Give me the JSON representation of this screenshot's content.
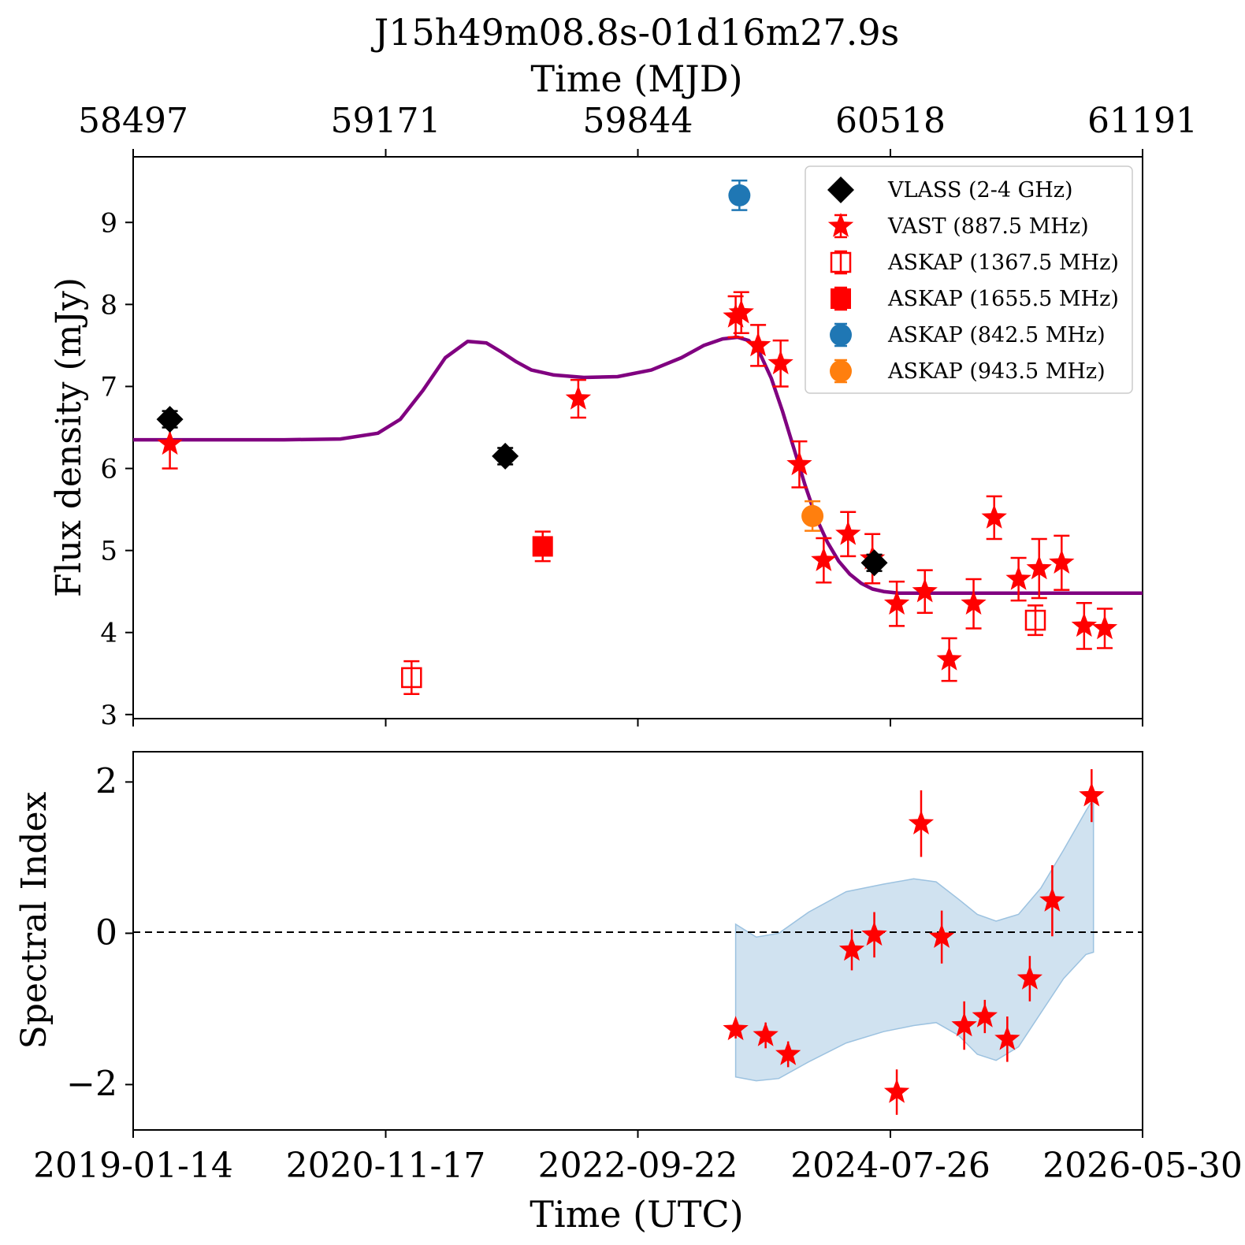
{
  "title": "J15h49m08.8s-01d16m27.9s",
  "colors": {
    "vlass": "#000000",
    "vast": "#ff0000",
    "askap_1367": "#ff0000",
    "askap_1655": "#ff0000",
    "askap_842": "#1f77b4",
    "askap_943": "#ff7f0e",
    "model": "#800080",
    "band": "#bcd6ea"
  },
  "chart_data": [
    {
      "type": "scatter",
      "panel": "flux",
      "top_axis_label": "Time (MJD)",
      "top_ticks": [
        58497,
        59171,
        59844,
        60518,
        61191
      ],
      "ylabel": "Flux density (mJy)",
      "xlim": [
        58497,
        61191
      ],
      "ylim": [
        2.95,
        9.8
      ],
      "yticks": [
        3,
        4,
        5,
        6,
        7,
        8,
        9
      ],
      "legend_position": "top-right",
      "series": [
        {
          "name": "VLASS (2-4 GHz)",
          "marker": "diamond",
          "points": [
            {
              "x": 58595,
              "y": 6.6,
              "err": 0.1
            },
            {
              "x": 59490,
              "y": 6.15,
              "err": 0.1
            },
            {
              "x": 60475,
              "y": 4.85,
              "err": 0.1
            }
          ]
        },
        {
          "name": "VAST (887.5 MHz)",
          "marker": "star",
          "points": [
            {
              "x": 58595,
              "y": 6.3,
              "err": 0.3
            },
            {
              "x": 59685,
              "y": 6.85,
              "err": 0.23
            },
            {
              "x": 60105,
              "y": 7.85,
              "err": 0.25
            },
            {
              "x": 60120,
              "y": 7.9,
              "err": 0.25
            },
            {
              "x": 60165,
              "y": 7.5,
              "err": 0.25
            },
            {
              "x": 60225,
              "y": 7.28,
              "err": 0.28
            },
            {
              "x": 60275,
              "y": 6.05,
              "err": 0.28
            },
            {
              "x": 60340,
              "y": 4.88,
              "err": 0.27
            },
            {
              "x": 60405,
              "y": 5.2,
              "err": 0.27
            },
            {
              "x": 60470,
              "y": 4.9,
              "err": 0.3
            },
            {
              "x": 60535,
              "y": 4.35,
              "err": 0.27
            },
            {
              "x": 60610,
              "y": 4.5,
              "err": 0.26
            },
            {
              "x": 60675,
              "y": 3.67,
              "err": 0.26
            },
            {
              "x": 60740,
              "y": 4.35,
              "err": 0.3
            },
            {
              "x": 60795,
              "y": 5.4,
              "err": 0.26
            },
            {
              "x": 60860,
              "y": 4.65,
              "err": 0.26
            },
            {
              "x": 60915,
              "y": 4.78,
              "err": 0.36
            },
            {
              "x": 60975,
              "y": 4.85,
              "err": 0.33
            },
            {
              "x": 61035,
              "y": 4.08,
              "err": 0.28
            },
            {
              "x": 61090,
              "y": 4.05,
              "err": 0.24
            }
          ]
        },
        {
          "name": "ASKAP (1367.5 MHz)",
          "marker": "open-square",
          "points": [
            {
              "x": 59240,
              "y": 3.45,
              "err": 0.2
            },
            {
              "x": 60905,
              "y": 4.15,
              "err": 0.18
            }
          ]
        },
        {
          "name": "ASKAP (1655.5 MHz)",
          "marker": "square",
          "points": [
            {
              "x": 59590,
              "y": 5.05,
              "err": 0.18
            }
          ]
        },
        {
          "name": "ASKAP (842.5 MHz)",
          "marker": "circle",
          "points": [
            {
              "x": 60115,
              "y": 9.33,
              "err": 0.18
            }
          ]
        },
        {
          "name": "ASKAP (943.5 MHz)",
          "marker": "circle",
          "points": [
            {
              "x": 60310,
              "y": 5.42,
              "err": 0.18
            }
          ]
        }
      ],
      "model_curve": {
        "x": [
          58497,
          58700,
          58900,
          59050,
          59150,
          59210,
          59270,
          59330,
          59390,
          59440,
          59480,
          59520,
          59560,
          59620,
          59700,
          59790,
          59880,
          59960,
          60020,
          60070,
          60110,
          60140,
          60170,
          60200,
          60230,
          60260,
          60290,
          60320,
          60350,
          60380,
          60410,
          60440,
          60470,
          60500,
          60540,
          60600,
          60700,
          60900,
          61191
        ],
        "y": [
          6.35,
          6.35,
          6.35,
          6.36,
          6.43,
          6.6,
          6.95,
          7.35,
          7.55,
          7.53,
          7.42,
          7.3,
          7.2,
          7.14,
          7.11,
          7.12,
          7.2,
          7.35,
          7.5,
          7.58,
          7.6,
          7.56,
          7.4,
          7.1,
          6.7,
          6.25,
          5.8,
          5.4,
          5.1,
          4.87,
          4.71,
          4.6,
          4.53,
          4.5,
          4.48,
          4.48,
          4.48,
          4.48,
          4.48
        ]
      }
    },
    {
      "type": "scatter",
      "panel": "spectral_index",
      "xlabel": "Time (UTC)",
      "ylabel": "Spectral Index",
      "xlim": [
        58497,
        61191
      ],
      "ylim": [
        -2.6,
        2.4
      ],
      "yticks": [
        -2,
        0,
        2
      ],
      "ytick_labels": [
        "−2",
        "0",
        "2"
      ],
      "xticks": [
        58497,
        59171,
        59844,
        60518,
        61191
      ],
      "xtick_labels": [
        "2019-01-14",
        "2020-11-17",
        "2022-09-22",
        "2024-07-26",
        "2026-05-30"
      ],
      "reference_line": 0,
      "points": [
        {
          "x": 60105,
          "y": -1.27,
          "err": 0.12
        },
        {
          "x": 60185,
          "y": -1.35,
          "err": 0.17
        },
        {
          "x": 60245,
          "y": -1.6,
          "err": 0.17
        },
        {
          "x": 60415,
          "y": -0.22,
          "err": 0.27
        },
        {
          "x": 60475,
          "y": -0.02,
          "err": 0.3
        },
        {
          "x": 60535,
          "y": -2.1,
          "err": 0.3
        },
        {
          "x": 60600,
          "y": 1.45,
          "err": 0.44
        },
        {
          "x": 60655,
          "y": -0.05,
          "err": 0.35
        },
        {
          "x": 60715,
          "y": -1.22,
          "err": 0.32
        },
        {
          "x": 60770,
          "y": -1.1,
          "err": 0.22
        },
        {
          "x": 60830,
          "y": -1.4,
          "err": 0.3
        },
        {
          "x": 60890,
          "y": -0.6,
          "err": 0.3
        },
        {
          "x": 60950,
          "y": 0.43,
          "err": 0.47
        },
        {
          "x": 61055,
          "y": 1.82,
          "err": 0.35
        }
      ],
      "band": {
        "x": [
          60105,
          60160,
          60220,
          60300,
          60400,
          60500,
          60580,
          60640,
          60700,
          60750,
          60800,
          60860,
          60920,
          60980,
          61040,
          61060
        ],
        "upper": [
          0.12,
          -0.05,
          0.0,
          0.28,
          0.55,
          0.65,
          0.72,
          0.68,
          0.45,
          0.25,
          0.16,
          0.25,
          0.6,
          1.1,
          1.62,
          1.78
        ],
        "lower": [
          -1.9,
          -1.95,
          -1.92,
          -1.7,
          -1.45,
          -1.3,
          -1.22,
          -1.18,
          -1.35,
          -1.6,
          -1.68,
          -1.5,
          -1.05,
          -0.6,
          -0.28,
          -0.25
        ]
      }
    }
  ]
}
